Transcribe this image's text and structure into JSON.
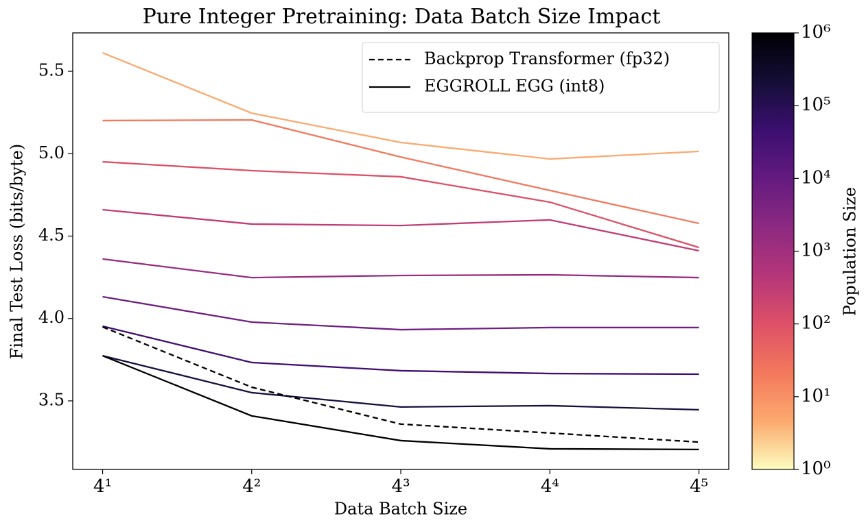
{
  "chart_data": {
    "type": "line",
    "title": "Pure Integer Pretraining: Data Batch Size Impact",
    "x_label": "Data Batch Size",
    "y_label": "Final Test Loss (bits/byte)",
    "x_log_base": 4,
    "x": [
      4,
      16,
      64,
      256,
      1024
    ],
    "xlim": [
      3.03,
      1351
    ],
    "xticks": [
      {
        "value": 4,
        "label": "4¹"
      },
      {
        "value": 16,
        "label": "4²"
      },
      {
        "value": 64,
        "label": "4³"
      },
      {
        "value": 256,
        "label": "4⁴"
      },
      {
        "value": 1024,
        "label": "4⁵"
      }
    ],
    "ylim": [
      3.084,
      5.733
    ],
    "yticks": [
      3.5,
      {
        "value": 4,
        "label": "4.0"
      },
      4.5,
      {
        "value": 5,
        "label": "5.0"
      },
      5.5
    ],
    "grid": false,
    "series": [
      {
        "color": "#fca96e",
        "dash": false,
        "values": [
          5.612,
          5.246,
          5.068,
          4.968,
          5.014
        ]
      },
      {
        "color": "#f3785c",
        "dash": false,
        "values": [
          5.201,
          5.205,
          4.98,
          4.777,
          4.577
        ]
      },
      {
        "color": "#dd5067",
        "dash": false,
        "values": [
          4.951,
          4.897,
          4.86,
          4.706,
          4.431
        ]
      },
      {
        "color": "#c13c75",
        "dash": false,
        "values": [
          4.66,
          4.573,
          4.564,
          4.598,
          4.411
        ]
      },
      {
        "color": "#982c80",
        "dash": false,
        "values": [
          4.361,
          4.248,
          4.261,
          4.265,
          4.248
        ]
      },
      {
        "color": "#6e1f81",
        "dash": false,
        "values": [
          4.132,
          3.978,
          3.932,
          3.945,
          3.945
        ]
      },
      {
        "color": "#3f0f72",
        "dash": false,
        "values": [
          3.953,
          3.733,
          3.683,
          3.666,
          3.662
        ]
      },
      {
        "color": "#170f3c",
        "dash": false,
        "values": [
          3.774,
          3.55,
          3.463,
          3.471,
          3.446
        ]
      },
      {
        "color": "#000000",
        "dash": false,
        "values": [
          3.774,
          3.409,
          3.259,
          3.209,
          3.205
        ]
      },
      {
        "color": "#000000",
        "dash": true,
        "values": [
          3.949,
          3.583,
          3.359,
          3.305,
          3.25
        ]
      }
    ],
    "legend": [
      {
        "label": "Backprop Transformer (fp32)",
        "color": "#000000",
        "dash": true
      },
      {
        "label": "EGGROLL EGG (int8)",
        "color": "#000000",
        "dash": false
      }
    ],
    "legend_position": "upper right",
    "colorbar": {
      "label": "Population Size",
      "log": true,
      "lim": [
        1,
        1000000
      ],
      "ticks": [
        {
          "value": 1,
          "label": "10⁰"
        },
        {
          "value": 10,
          "label": "10¹"
        },
        {
          "value": 100,
          "label": "10²"
        },
        {
          "value": 1000,
          "label": "10³"
        },
        {
          "value": 10000,
          "label": "10⁴"
        },
        {
          "value": 100000,
          "label": "10⁵"
        },
        {
          "value": 1000000,
          "label": "10⁶"
        }
      ],
      "colors": [
        "#fcfdbf",
        "#fca96e",
        "#f3785c",
        "#dd5067",
        "#b5367a",
        "#8c2981",
        "#641a80",
        "#3b0f70",
        "#140e36",
        "#000004"
      ]
    }
  }
}
